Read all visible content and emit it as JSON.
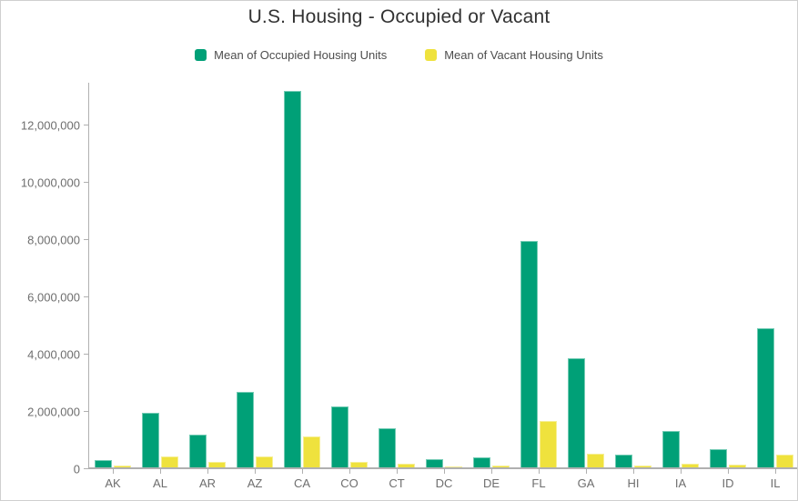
{
  "widget": {
    "title": "U.S. Housing - Occupied or Vacant"
  },
  "colors": {
    "occupied": "#00a077",
    "vacant": "#efe23d",
    "title_text": "#323232",
    "legend_text": "#4d4d4d",
    "axis_text": "#6e6e6e",
    "axis_line": "#b0b0b0"
  },
  "chart_data": {
    "type": "bar",
    "title": "U.S. Housing - Occupied or Vacant",
    "xlabel": "",
    "ylabel": "",
    "grid": false,
    "legend_position": "top",
    "categories": [
      "AK",
      "AL",
      "AR",
      "AZ",
      "CA",
      "CO",
      "CT",
      "DC",
      "DE",
      "FL",
      "GA",
      "HI",
      "IA",
      "ID",
      "IL"
    ],
    "series": [
      {
        "name": "Mean of Occupied Housing Units",
        "color": "#00a077",
        "values": [
          240000,
          1900000,
          1150000,
          2650000,
          13150000,
          2130000,
          1360000,
          280000,
          350000,
          7900000,
          3800000,
          440000,
          1260000,
          640000,
          4850000
        ]
      },
      {
        "name": "Mean of Vacant Housing Units",
        "color": "#efe23d",
        "values": [
          50000,
          380000,
          175000,
          390000,
          1090000,
          200000,
          120000,
          30000,
          55000,
          1620000,
          480000,
          60000,
          130000,
          90000,
          460000
        ]
      }
    ],
    "y_axis": {
      "min": 0,
      "max": 13450000,
      "tick_values": [
        0,
        2000000,
        4000000,
        6000000,
        8000000,
        10000000,
        12000000
      ],
      "tick_labels": [
        "0",
        "2,000,000",
        "4,000,000",
        "6,000,000",
        "8,000,000",
        "10,000,000",
        "12,000,000"
      ]
    }
  }
}
